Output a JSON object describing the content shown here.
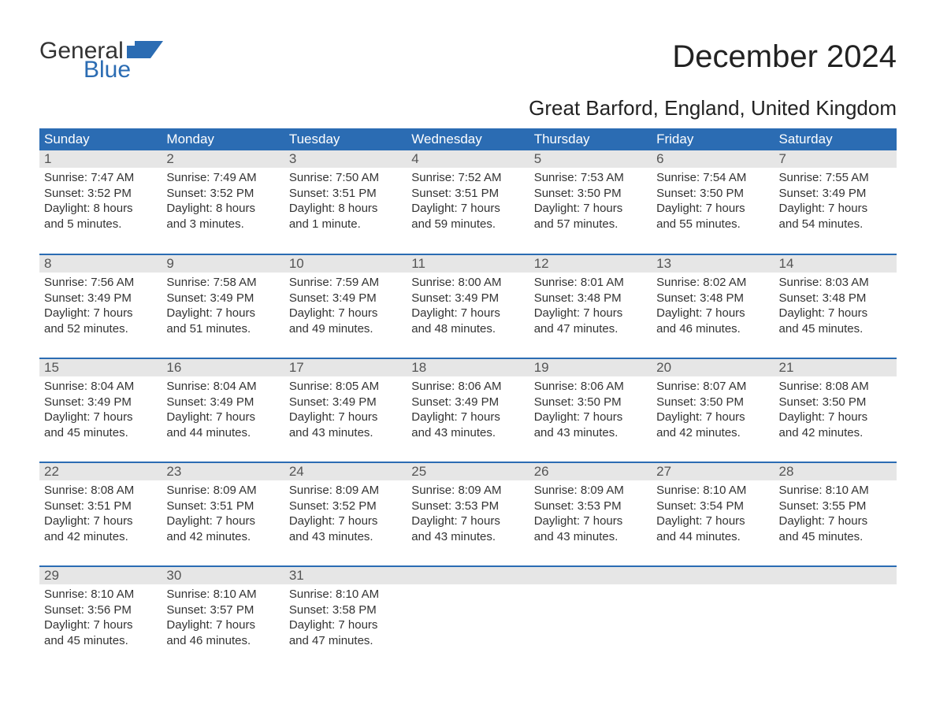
{
  "logo": {
    "word1": "General",
    "word2": "Blue"
  },
  "title": "December 2024",
  "location": "Great Barford, England, United Kingdom",
  "colors": {
    "header_bg": "#2b6cb3",
    "header_text": "#ffffff",
    "daynum_bg": "#e6e6e6",
    "daynum_text": "#555555",
    "body_text": "#333333",
    "logo_blue": "#2b6cb3",
    "page_bg": "#ffffff"
  },
  "typography": {
    "title_fontsize": 40,
    "location_fontsize": 26,
    "header_fontsize": 17,
    "daynum_fontsize": 17,
    "body_fontsize": 15,
    "font_family": "Arial"
  },
  "day_headers": [
    "Sunday",
    "Monday",
    "Tuesday",
    "Wednesday",
    "Thursday",
    "Friday",
    "Saturday"
  ],
  "weeks": [
    [
      {
        "n": "1",
        "sr": "Sunrise: 7:47 AM",
        "ss": "Sunset: 3:52 PM",
        "d1": "Daylight: 8 hours",
        "d2": "and 5 minutes."
      },
      {
        "n": "2",
        "sr": "Sunrise: 7:49 AM",
        "ss": "Sunset: 3:52 PM",
        "d1": "Daylight: 8 hours",
        "d2": "and 3 minutes."
      },
      {
        "n": "3",
        "sr": "Sunrise: 7:50 AM",
        "ss": "Sunset: 3:51 PM",
        "d1": "Daylight: 8 hours",
        "d2": "and 1 minute."
      },
      {
        "n": "4",
        "sr": "Sunrise: 7:52 AM",
        "ss": "Sunset: 3:51 PM",
        "d1": "Daylight: 7 hours",
        "d2": "and 59 minutes."
      },
      {
        "n": "5",
        "sr": "Sunrise: 7:53 AM",
        "ss": "Sunset: 3:50 PM",
        "d1": "Daylight: 7 hours",
        "d2": "and 57 minutes."
      },
      {
        "n": "6",
        "sr": "Sunrise: 7:54 AM",
        "ss": "Sunset: 3:50 PM",
        "d1": "Daylight: 7 hours",
        "d2": "and 55 minutes."
      },
      {
        "n": "7",
        "sr": "Sunrise: 7:55 AM",
        "ss": "Sunset: 3:49 PM",
        "d1": "Daylight: 7 hours",
        "d2": "and 54 minutes."
      }
    ],
    [
      {
        "n": "8",
        "sr": "Sunrise: 7:56 AM",
        "ss": "Sunset: 3:49 PM",
        "d1": "Daylight: 7 hours",
        "d2": "and 52 minutes."
      },
      {
        "n": "9",
        "sr": "Sunrise: 7:58 AM",
        "ss": "Sunset: 3:49 PM",
        "d1": "Daylight: 7 hours",
        "d2": "and 51 minutes."
      },
      {
        "n": "10",
        "sr": "Sunrise: 7:59 AM",
        "ss": "Sunset: 3:49 PM",
        "d1": "Daylight: 7 hours",
        "d2": "and 49 minutes."
      },
      {
        "n": "11",
        "sr": "Sunrise: 8:00 AM",
        "ss": "Sunset: 3:49 PM",
        "d1": "Daylight: 7 hours",
        "d2": "and 48 minutes."
      },
      {
        "n": "12",
        "sr": "Sunrise: 8:01 AM",
        "ss": "Sunset: 3:48 PM",
        "d1": "Daylight: 7 hours",
        "d2": "and 47 minutes."
      },
      {
        "n": "13",
        "sr": "Sunrise: 8:02 AM",
        "ss": "Sunset: 3:48 PM",
        "d1": "Daylight: 7 hours",
        "d2": "and 46 minutes."
      },
      {
        "n": "14",
        "sr": "Sunrise: 8:03 AM",
        "ss": "Sunset: 3:48 PM",
        "d1": "Daylight: 7 hours",
        "d2": "and 45 minutes."
      }
    ],
    [
      {
        "n": "15",
        "sr": "Sunrise: 8:04 AM",
        "ss": "Sunset: 3:49 PM",
        "d1": "Daylight: 7 hours",
        "d2": "and 45 minutes."
      },
      {
        "n": "16",
        "sr": "Sunrise: 8:04 AM",
        "ss": "Sunset: 3:49 PM",
        "d1": "Daylight: 7 hours",
        "d2": "and 44 minutes."
      },
      {
        "n": "17",
        "sr": "Sunrise: 8:05 AM",
        "ss": "Sunset: 3:49 PM",
        "d1": "Daylight: 7 hours",
        "d2": "and 43 minutes."
      },
      {
        "n": "18",
        "sr": "Sunrise: 8:06 AM",
        "ss": "Sunset: 3:49 PM",
        "d1": "Daylight: 7 hours",
        "d2": "and 43 minutes."
      },
      {
        "n": "19",
        "sr": "Sunrise: 8:06 AM",
        "ss": "Sunset: 3:50 PM",
        "d1": "Daylight: 7 hours",
        "d2": "and 43 minutes."
      },
      {
        "n": "20",
        "sr": "Sunrise: 8:07 AM",
        "ss": "Sunset: 3:50 PM",
        "d1": "Daylight: 7 hours",
        "d2": "and 42 minutes."
      },
      {
        "n": "21",
        "sr": "Sunrise: 8:08 AM",
        "ss": "Sunset: 3:50 PM",
        "d1": "Daylight: 7 hours",
        "d2": "and 42 minutes."
      }
    ],
    [
      {
        "n": "22",
        "sr": "Sunrise: 8:08 AM",
        "ss": "Sunset: 3:51 PM",
        "d1": "Daylight: 7 hours",
        "d2": "and 42 minutes."
      },
      {
        "n": "23",
        "sr": "Sunrise: 8:09 AM",
        "ss": "Sunset: 3:51 PM",
        "d1": "Daylight: 7 hours",
        "d2": "and 42 minutes."
      },
      {
        "n": "24",
        "sr": "Sunrise: 8:09 AM",
        "ss": "Sunset: 3:52 PM",
        "d1": "Daylight: 7 hours",
        "d2": "and 43 minutes."
      },
      {
        "n": "25",
        "sr": "Sunrise: 8:09 AM",
        "ss": "Sunset: 3:53 PM",
        "d1": "Daylight: 7 hours",
        "d2": "and 43 minutes."
      },
      {
        "n": "26",
        "sr": "Sunrise: 8:09 AM",
        "ss": "Sunset: 3:53 PM",
        "d1": "Daylight: 7 hours",
        "d2": "and 43 minutes."
      },
      {
        "n": "27",
        "sr": "Sunrise: 8:10 AM",
        "ss": "Sunset: 3:54 PM",
        "d1": "Daylight: 7 hours",
        "d2": "and 44 minutes."
      },
      {
        "n": "28",
        "sr": "Sunrise: 8:10 AM",
        "ss": "Sunset: 3:55 PM",
        "d1": "Daylight: 7 hours",
        "d2": "and 45 minutes."
      }
    ],
    [
      {
        "n": "29",
        "sr": "Sunrise: 8:10 AM",
        "ss": "Sunset: 3:56 PM",
        "d1": "Daylight: 7 hours",
        "d2": "and 45 minutes."
      },
      {
        "n": "30",
        "sr": "Sunrise: 8:10 AM",
        "ss": "Sunset: 3:57 PM",
        "d1": "Daylight: 7 hours",
        "d2": "and 46 minutes."
      },
      {
        "n": "31",
        "sr": "Sunrise: 8:10 AM",
        "ss": "Sunset: 3:58 PM",
        "d1": "Daylight: 7 hours",
        "d2": "and 47 minutes."
      },
      null,
      null,
      null,
      null
    ]
  ]
}
